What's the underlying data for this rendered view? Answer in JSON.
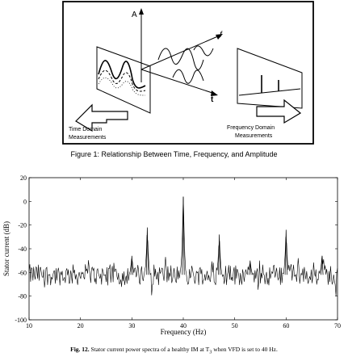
{
  "figure1": {
    "axis_amplitude": "A",
    "axis_frequency": "f",
    "axis_time": "t",
    "time_domain_label_line1": "Time Domain",
    "time_domain_label_line2": "Measurements",
    "frequency_domain_label_line1": "Frequency Domain",
    "frequency_domain_label_line2": "Measurements",
    "caption": "Figure 1: Relationship Between Time, Frequency, and Amplitude"
  },
  "figure2": {
    "caption_label": "Fig. 12.",
    "caption_text": "Stator current power spectra of a healthy IM at T",
    "caption_subscript": "3",
    "caption_tail": " when VFD is set to 40 Hz.",
    "chart_data": {
      "type": "line",
      "xlabel": "Frequency (Hz)",
      "ylabel": "Stator current (dB)",
      "xlim": [
        10,
        70
      ],
      "ylim": [
        -100,
        20
      ],
      "x_ticks": [
        10,
        20,
        30,
        40,
        50,
        60,
        70
      ],
      "y_ticks": [
        -100,
        -80,
        -60,
        -40,
        -20,
        0,
        20
      ],
      "grid": false,
      "noise_floor_db": -62,
      "peaks": [
        {
          "x": 30,
          "y": -46
        },
        {
          "x": 33,
          "y": -22
        },
        {
          "x": 40,
          "y": 4
        },
        {
          "x": 47,
          "y": -28
        },
        {
          "x": 53,
          "y": -50
        },
        {
          "x": 60,
          "y": -24
        },
        {
          "x": 67,
          "y": -46
        }
      ]
    }
  }
}
